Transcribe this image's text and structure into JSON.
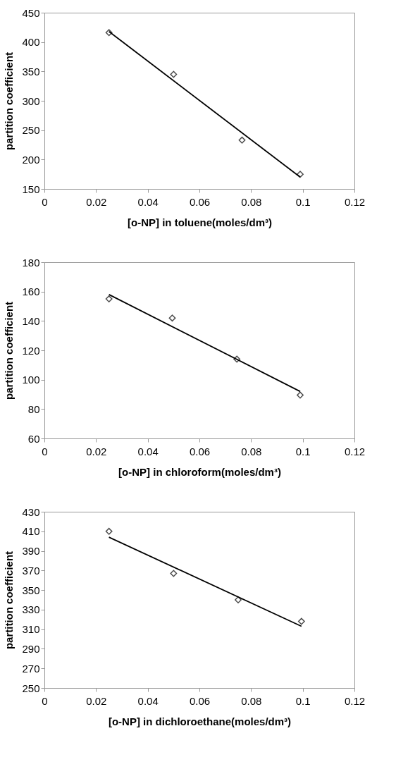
{
  "chart_data": [
    {
      "type": "scatter",
      "xlabel": "[o-NP] in toluene(moles/dm³)",
      "ylabel": "partition coefficient",
      "xlim": [
        0,
        0.12
      ],
      "xticks": [
        0,
        0.02,
        0.04,
        0.06,
        0.08,
        0.1,
        0.12
      ],
      "ylim": [
        150,
        450
      ],
      "yticks": [
        150,
        200,
        250,
        300,
        350,
        400,
        450
      ],
      "marker": "diamond",
      "series": [
        {
          "type": "scatter",
          "color": "#000000",
          "x": [
            0.025,
            0.05,
            0.0765,
            0.099
          ],
          "values": [
            416,
            345,
            233,
            175
          ]
        },
        {
          "type": "line",
          "color": "#000000",
          "marker": "none",
          "x": [
            0.025,
            0.099
          ],
          "values": [
            418,
            170
          ]
        }
      ]
    },
    {
      "type": "scatter",
      "xlabel": "[o-NP] in chloroform(moles/dm³)",
      "ylabel": "partition coefficient",
      "xlim": [
        0,
        0.12
      ],
      "xticks": [
        0,
        0.02,
        0.04,
        0.06,
        0.08,
        0.1,
        0.12
      ],
      "ylim": [
        60,
        180
      ],
      "yticks": [
        60,
        80,
        100,
        120,
        140,
        160,
        180
      ],
      "marker": "diamond",
      "series": [
        {
          "type": "scatter",
          "color": "#000000",
          "x": [
            0.025,
            0.0495,
            0.0745,
            0.099
          ],
          "values": [
            155,
            142,
            114,
            89.5
          ]
        },
        {
          "type": "line",
          "color": "#000000",
          "marker": "none",
          "x": [
            0.025,
            0.099
          ],
          "values": [
            158,
            92
          ]
        }
      ]
    },
    {
      "type": "scatter",
      "xlabel": "[o-NP] in dichloroethane(moles/dm³)",
      "ylabel": "partition coefficient",
      "xlim": [
        0,
        0.12
      ],
      "xticks": [
        0,
        0.02,
        0.04,
        0.06,
        0.08,
        0.1,
        0.12
      ],
      "ylim": [
        250,
        430
      ],
      "yticks": [
        250,
        270,
        290,
        310,
        330,
        350,
        370,
        390,
        410,
        430
      ],
      "marker": "diamond",
      "series": [
        {
          "type": "scatter",
          "color": "#000000",
          "x": [
            0.025,
            0.05,
            0.075,
            0.0995
          ],
          "values": [
            410,
            367,
            340,
            318
          ]
        },
        {
          "type": "line",
          "color": "#000000",
          "marker": "none",
          "x": [
            0.025,
            0.0995
          ],
          "values": [
            404,
            313
          ]
        }
      ]
    }
  ]
}
